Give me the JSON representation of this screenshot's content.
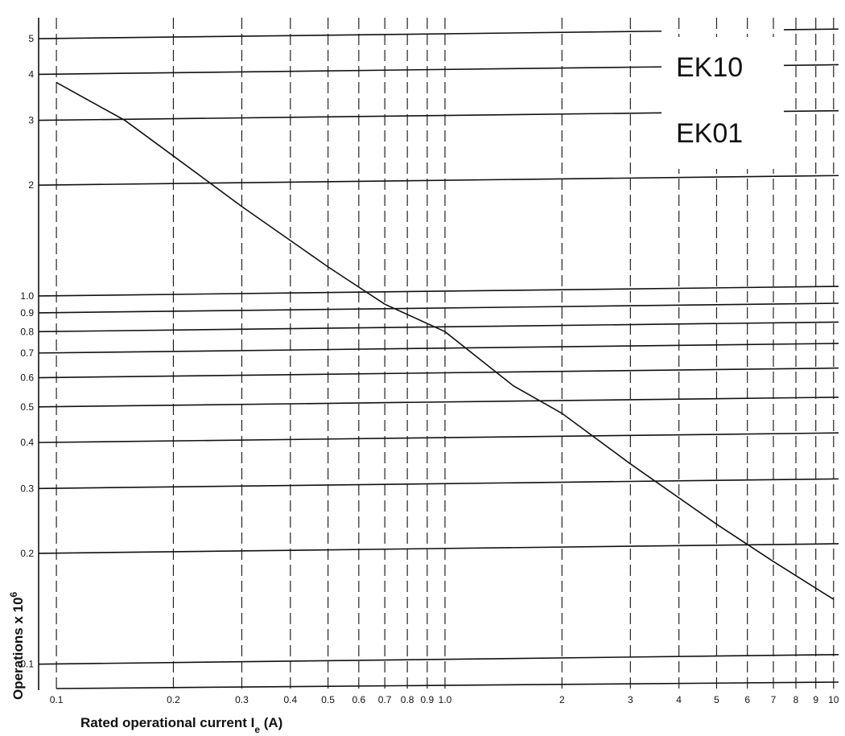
{
  "chart_data": {
    "type": "line",
    "xscale": "log",
    "yscale": "log",
    "xlim": [
      0.09,
      10.3
    ],
    "ylim": [
      0.085,
      5.7
    ],
    "xlabel": "Rated operational current I",
    "xlabel_sub": "e",
    "xlabel_unit": " (A)",
    "ylabel": "Operations x 10",
    "ylabel_sup": "6",
    "x_ticks": [
      {
        "value": 0.1,
        "label": "0.1"
      },
      {
        "value": 0.2,
        "label": "0.2"
      },
      {
        "value": 0.3,
        "label": "0.3"
      },
      {
        "value": 0.4,
        "label": "0.4"
      },
      {
        "value": 0.5,
        "label": "0.5"
      },
      {
        "value": 0.6,
        "label": "0.6"
      },
      {
        "value": 0.7,
        "label": "0.7"
      },
      {
        "value": 0.8,
        "label": "0.8"
      },
      {
        "value": 0.9,
        "label": "0.9"
      },
      {
        "value": 1.0,
        "label": "1.0"
      },
      {
        "value": 2,
        "label": "2"
      },
      {
        "value": 3,
        "label": "3"
      },
      {
        "value": 4,
        "label": "4"
      },
      {
        "value": 5,
        "label": "5"
      },
      {
        "value": 6,
        "label": "6"
      },
      {
        "value": 7,
        "label": "7"
      },
      {
        "value": 8,
        "label": "8"
      },
      {
        "value": 9,
        "label": "9"
      },
      {
        "value": 10,
        "label": "10"
      }
    ],
    "y_ticks": [
      {
        "value": 0.1,
        "label": "0.1"
      },
      {
        "value": 0.2,
        "label": "0.2"
      },
      {
        "value": 0.3,
        "label": "0.3"
      },
      {
        "value": 0.4,
        "label": "0.4"
      },
      {
        "value": 0.5,
        "label": "0.5"
      },
      {
        "value": 0.6,
        "label": "0.6"
      },
      {
        "value": 0.7,
        "label": "0.7"
      },
      {
        "value": 0.8,
        "label": "0.8"
      },
      {
        "value": 0.9,
        "label": "0.9"
      },
      {
        "value": 1.0,
        "label": "1.0"
      },
      {
        "value": 2,
        "label": "2"
      },
      {
        "value": 3,
        "label": "3"
      },
      {
        "value": 4,
        "label": "4"
      },
      {
        "value": 5,
        "label": "5"
      }
    ],
    "legend": [
      "EK10",
      "EK01"
    ],
    "legend_position": "top-right",
    "grid": true,
    "series": [
      {
        "x": [
          0.1,
          0.15,
          0.2,
          0.3,
          0.5,
          0.7,
          1.0,
          1.5,
          2,
          3,
          5,
          7,
          10
        ],
        "values": [
          3.8,
          3.0,
          2.4,
          1.75,
          1.2,
          0.95,
          0.8,
          0.57,
          0.48,
          0.35,
          0.24,
          0.19,
          0.15
        ]
      }
    ]
  }
}
